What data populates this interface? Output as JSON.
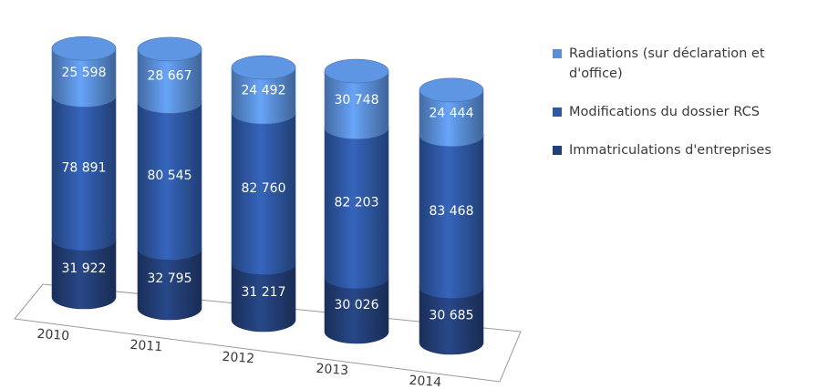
{
  "chart_data": {
    "type": "bar",
    "categories": [
      "2010",
      "2011",
      "2012",
      "2013",
      "2014"
    ],
    "series": [
      {
        "name": "Immatriculations d'entreprises",
        "values": [
          31922,
          32795,
          31217,
          30026,
          30685
        ],
        "labels": [
          "31 922",
          "32 795",
          "31 217",
          "30 026",
          "30 685"
        ],
        "color": "#233f77"
      },
      {
        "name": "Modifications du dossier RCS",
        "values": [
          78891,
          80545,
          82760,
          82203,
          83468
        ],
        "labels": [
          "78 891",
          "80 545",
          "82 760",
          "82 203",
          "83 468"
        ],
        "color": "#2f58a4"
      },
      {
        "name": "Radiations (sur déclaration et d'office)",
        "values": [
          25598,
          28667,
          24492,
          30748,
          24444
        ],
        "labels": [
          "25 598",
          "28 667",
          "24 492",
          "30 748",
          "24 444"
        ],
        "color": "#5a8fd8"
      }
    ],
    "legend_position": "right",
    "stacked": true
  },
  "legend": [
    {
      "label_line1": "Radiations (sur déclaration et",
      "label_line2": "d'office)",
      "color": "#5a8fd8"
    },
    {
      "label_line1": "Modifications du dossier RCS",
      "label_line2": "",
      "color": "#2f58a4"
    },
    {
      "label_line1": "Immatriculations d'entreprises",
      "label_line2": "",
      "color": "#233f77"
    }
  ]
}
